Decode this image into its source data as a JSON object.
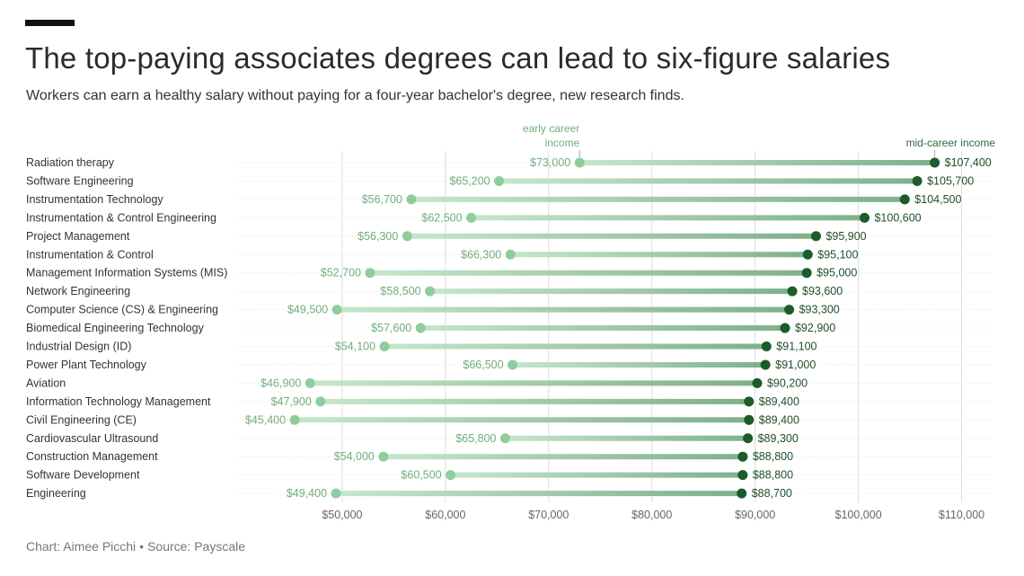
{
  "header": {
    "title": "The top-paying associates degrees can lead to six-figure salaries",
    "subtitle": "Workers can earn a healthy salary without paying for a four-year bachelor's degree, new research finds."
  },
  "footer": {
    "chart_credit": "Chart: Aimee Picchi",
    "separator": "•",
    "source": "Source: Payscale"
  },
  "colors": {
    "early": "#8fcd9c",
    "mid": "#1a5c2a",
    "bar_light": "#c6e6cc",
    "bar_dark": "#7fb08a",
    "grid": "#dddddd"
  },
  "chart_data": {
    "type": "dumbbell",
    "title": "The top-paying associates degrees can lead to six-figure salaries",
    "subtitle": "Workers can earn a healthy salary without paying for a four-year bachelor's degree, new research finds.",
    "xlim": [
      40000,
      113000
    ],
    "x_ticks": [
      50000,
      60000,
      70000,
      80000,
      90000,
      100000,
      110000
    ],
    "x_tick_labels": [
      "$50,000",
      "$60,000",
      "$70,000",
      "$80,000",
      "$90,000",
      "$100,000",
      "$110,000"
    ],
    "grid": true,
    "legend": [
      {
        "name": "early career income",
        "lines": [
          "early career",
          "income"
        ]
      },
      {
        "name": "mid-career income",
        "lines": [
          "mid-career income"
        ]
      }
    ],
    "categories": [
      "Radiation therapy",
      "Software Engineering",
      "Instrumentation Technology",
      "Instrumentation & Control Engineering",
      "Project Management",
      "Instrumentation & Control",
      "Management Information Systems (MIS)",
      "Network Engineering",
      "Computer Science (CS) & Engineering",
      "Biomedical Engineering Technology",
      "Industrial Design (ID)",
      "Power Plant Technology",
      "Aviation",
      "Information Technology Management",
      "Civil Engineering (CE)",
      "Cardiovascular Ultrasound",
      "Construction Management",
      "Software Development",
      "Engineering"
    ],
    "series": [
      {
        "name": "early career income",
        "values": [
          73000,
          65200,
          56700,
          62500,
          56300,
          66300,
          52700,
          58500,
          49500,
          57600,
          54100,
          66500,
          46900,
          47900,
          45400,
          65800,
          54000,
          60500,
          49400
        ],
        "labels": [
          "$73,000",
          "$65,200",
          "$56,700",
          "$62,500",
          "$56,300",
          "$66,300",
          "$52,700",
          "$58,500",
          "$49,500",
          "$57,600",
          "$54,100",
          "$66,500",
          "$46,900",
          "$47,900",
          "$45,400",
          "$65,800",
          "$54,000",
          "$60,500",
          "$49,400"
        ]
      },
      {
        "name": "mid-career income",
        "values": [
          107400,
          105700,
          104500,
          100600,
          95900,
          95100,
          95000,
          93600,
          93300,
          92900,
          91100,
          91000,
          90200,
          89400,
          89400,
          89300,
          88800,
          88800,
          88700
        ],
        "labels": [
          "$107,400",
          "$105,700",
          "$104,500",
          "$100,600",
          "$95,900",
          "$95,100",
          "$95,000",
          "$93,600",
          "$93,300",
          "$92,900",
          "$91,100",
          "$91,000",
          "$90,200",
          "$89,400",
          "$89,400",
          "$89,300",
          "$88,800",
          "$88,800",
          "$88,700"
        ]
      }
    ]
  }
}
